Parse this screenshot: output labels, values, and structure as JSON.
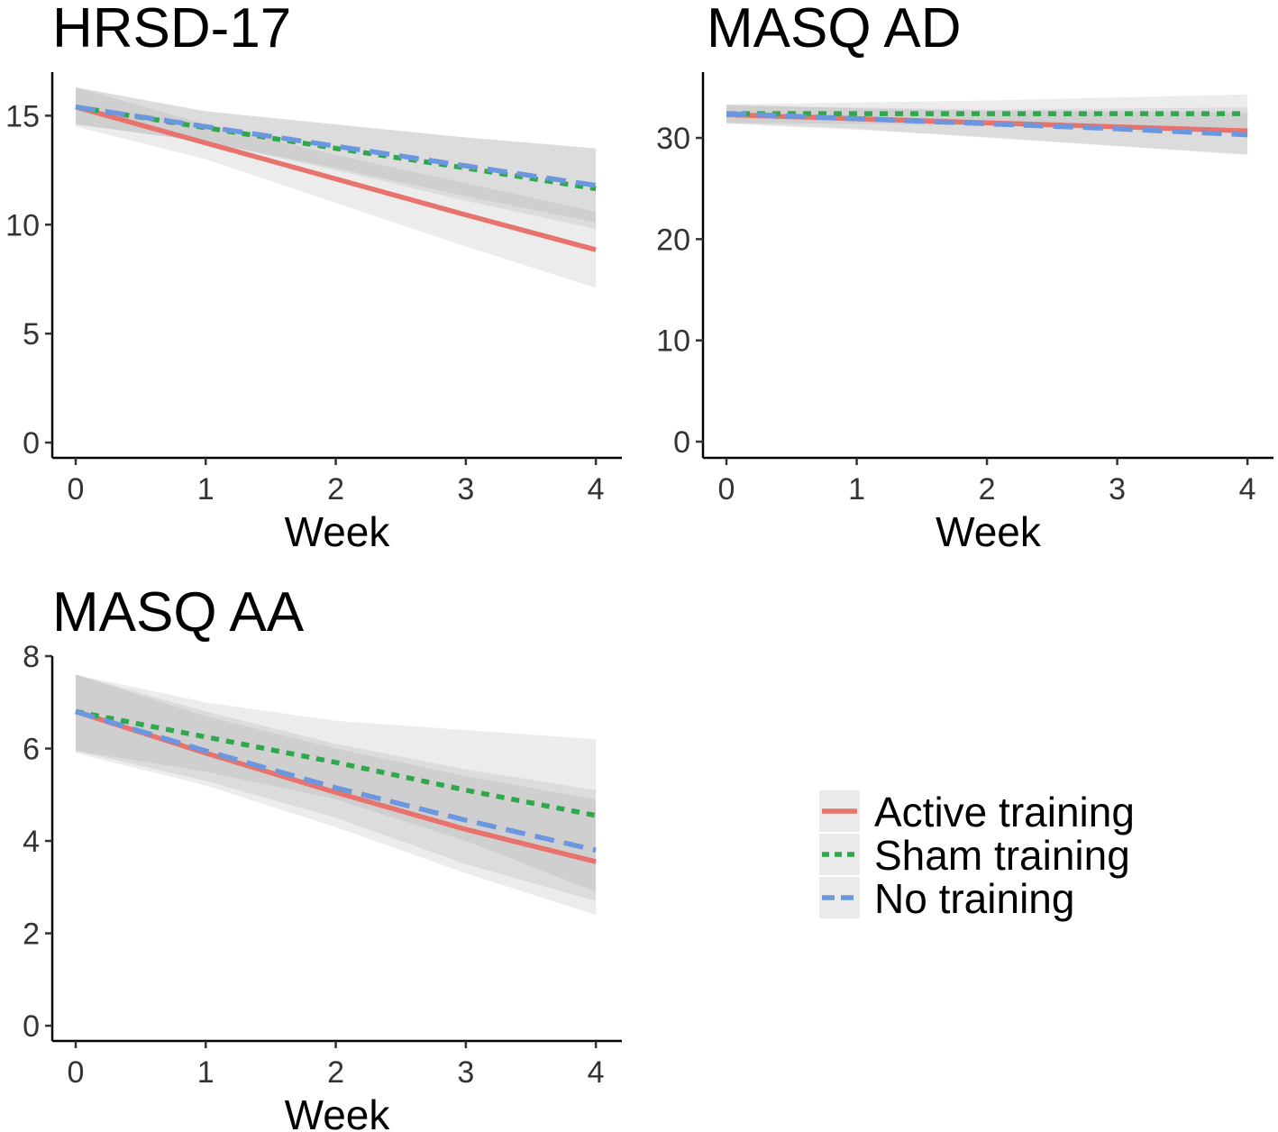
{
  "chart_data": [
    {
      "type": "line",
      "title": "HRSD-17",
      "xlabel": "Week",
      "ylabel": "",
      "x": [
        0,
        1,
        2,
        3,
        4
      ],
      "xlim": [
        -0.18,
        4.2
      ],
      "ylim": [
        -0.7,
        17
      ],
      "yticks": [
        0,
        5,
        10,
        15
      ],
      "grid": false,
      "series": [
        {
          "name": "Active training",
          "values": [
            15.4,
            13.75,
            12.1,
            10.45,
            8.85
          ],
          "lower": [
            14.5,
            13.0,
            11.0,
            9.0,
            7.1
          ],
          "upper": [
            16.3,
            14.6,
            13.2,
            11.9,
            10.6
          ]
        },
        {
          "name": "Sham training",
          "values": [
            15.4,
            14.45,
            13.5,
            12.6,
            11.65
          ],
          "lower": [
            14.6,
            13.8,
            12.5,
            11.1,
            9.8
          ],
          "upper": [
            16.3,
            15.2,
            14.6,
            14.0,
            13.5
          ]
        },
        {
          "name": "No training",
          "values": [
            15.4,
            14.5,
            13.6,
            12.7,
            11.8
          ],
          "lower": [
            14.6,
            13.8,
            12.6,
            11.3,
            10.1
          ],
          "upper": [
            16.3,
            15.2,
            14.6,
            14.0,
            13.5
          ]
        }
      ]
    },
    {
      "type": "line",
      "title": "MASQ AD",
      "xlabel": "Week",
      "ylabel": "",
      "x": [
        0,
        1,
        2,
        3,
        4
      ],
      "xlim": [
        -0.18,
        4.2
      ],
      "ylim": [
        -1.6,
        36.5
      ],
      "yticks": [
        0,
        10,
        20,
        30
      ],
      "grid": false,
      "series": [
        {
          "name": "Active training",
          "values": [
            32.3,
            31.9,
            31.5,
            31.1,
            30.7
          ],
          "lower": [
            31.4,
            30.8,
            30.1,
            29.2,
            28.3
          ],
          "upper": [
            33.2,
            33.0,
            32.8,
            32.9,
            33.0
          ]
        },
        {
          "name": "Sham training",
          "values": [
            32.4,
            32.4,
            32.4,
            32.4,
            32.4
          ],
          "lower": [
            31.5,
            31.4,
            31.2,
            30.9,
            30.5
          ],
          "upper": [
            33.3,
            33.5,
            33.7,
            34.0,
            34.3
          ]
        },
        {
          "name": "No training",
          "values": [
            32.4,
            31.9,
            31.4,
            30.9,
            30.3
          ],
          "lower": [
            31.5,
            30.9,
            30.0,
            29.2,
            28.4
          ],
          "upper": [
            33.3,
            32.9,
            32.7,
            32.6,
            32.5
          ]
        }
      ]
    },
    {
      "type": "line",
      "title": "MASQ AA",
      "xlabel": "Week",
      "ylabel": "",
      "x": [
        0,
        1,
        2,
        3,
        4
      ],
      "xlim": [
        -0.18,
        4.2
      ],
      "ylim": [
        -0.33,
        8.0
      ],
      "yticks": [
        0,
        2,
        4,
        6,
        8
      ],
      "grid": false,
      "series": [
        {
          "name": "Active training",
          "values": [
            6.8,
            5.9,
            5.05,
            4.25,
            3.55
          ],
          "lower": [
            5.9,
            5.2,
            4.3,
            3.3,
            2.4
          ],
          "upper": [
            7.6,
            6.7,
            6.0,
            5.4,
            4.9
          ]
        },
        {
          "name": "Sham training",
          "values": [
            6.8,
            6.25,
            5.7,
            5.1,
            4.55
          ],
          "lower": [
            5.95,
            5.5,
            4.9,
            4.0,
            2.9
          ],
          "upper": [
            7.6,
            7.0,
            6.6,
            6.4,
            6.2
          ]
        },
        {
          "name": "No training",
          "values": [
            6.8,
            5.95,
            5.15,
            4.45,
            3.8
          ],
          "lower": [
            5.95,
            5.3,
            4.5,
            3.5,
            2.7
          ],
          "upper": [
            7.6,
            6.8,
            6.1,
            5.55,
            5.1
          ]
        }
      ]
    }
  ],
  "legend": {
    "placement": "bottom-right",
    "items": [
      {
        "label": "Active training",
        "color": "#E8736C",
        "dash": "solid"
      },
      {
        "label": "Sham training",
        "color": "#2EA84A",
        "dash": "dotted"
      },
      {
        "label": "No training",
        "color": "#6B96E0",
        "dash": "dashed"
      }
    ]
  }
}
